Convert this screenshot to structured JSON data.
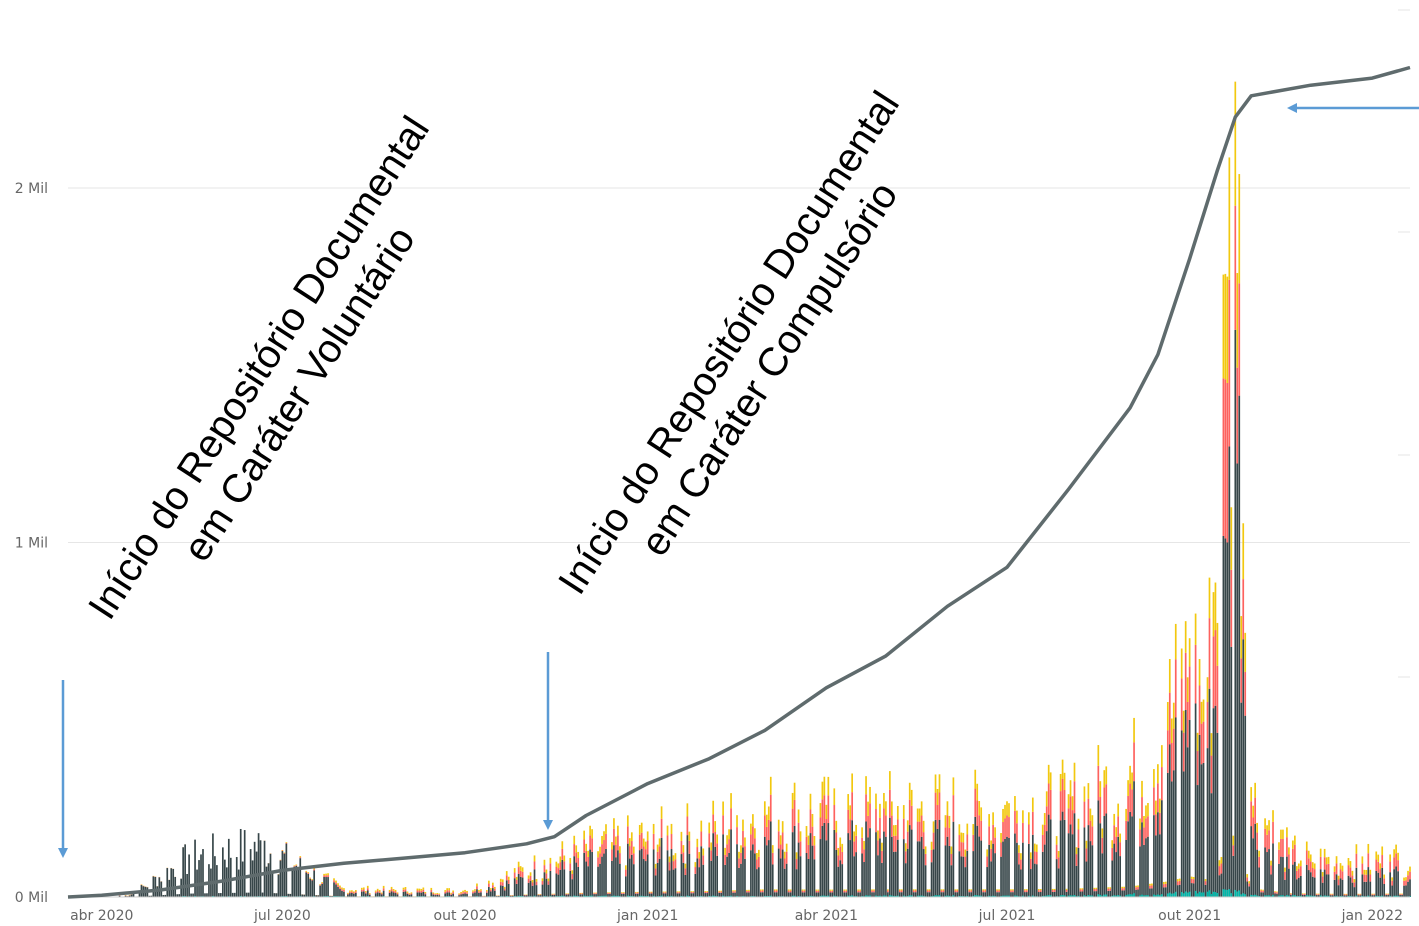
{
  "chart_data": {
    "type": "bar",
    "title": "",
    "xlabel": "",
    "ylabel": "",
    "ylim": [
      0,
      2000
    ],
    "y_unit": "thousands",
    "y_ticks": [
      {
        "value": 0,
        "label": "0 Mil"
      },
      {
        "value": 1000,
        "label": "1 Mil"
      },
      {
        "value": 2000,
        "label": "2 Mil"
      }
    ],
    "x_ticks": [
      {
        "date": "2020-04-01",
        "label": "abr 2020"
      },
      {
        "date": "2020-07-01",
        "label": "jul 2020"
      },
      {
        "date": "2020-10-01",
        "label": "out 2020"
      },
      {
        "date": "2021-01-01",
        "label": "jan 2021"
      },
      {
        "date": "2021-04-01",
        "label": "abr 2021"
      },
      {
        "date": "2021-07-01",
        "label": "jul 2021"
      },
      {
        "date": "2021-10-01",
        "label": "out 2021"
      },
      {
        "date": "2022-01-01",
        "label": "jan 2022"
      }
    ],
    "x_range": [
      "2020-03-15",
      "2022-01-20"
    ],
    "grid": true,
    "legend": "none",
    "stack_colors": [
      "#374649",
      "#FD625E",
      "#F2C80F",
      "#01B8AA"
    ],
    "line_color": "#5F6B6D",
    "bar_samples": [
      {
        "date": "2020-04-15",
        "stack": [
          4,
          1,
          1,
          0
        ]
      },
      {
        "date": "2020-05-15",
        "stack": [
          120,
          0,
          0,
          2
        ]
      },
      {
        "date": "2020-06-01",
        "stack": [
          140,
          0,
          0,
          2
        ]
      },
      {
        "date": "2020-06-20",
        "stack": [
          160,
          0,
          0,
          2
        ]
      },
      {
        "date": "2020-08-01",
        "stack": [
          15,
          5,
          5,
          2
        ]
      },
      {
        "date": "2020-10-01",
        "stack": [
          10,
          5,
          5,
          2
        ]
      },
      {
        "date": "2020-11-10",
        "stack": [
          70,
          20,
          15,
          3
        ]
      },
      {
        "date": "2020-12-01",
        "stack": [
          100,
          30,
          20,
          3
        ]
      },
      {
        "date": "2021-01-01",
        "stack": [
          120,
          40,
          25,
          3
        ]
      },
      {
        "date": "2021-02-01",
        "stack": [
          140,
          40,
          30,
          3
        ]
      },
      {
        "date": "2021-03-01",
        "stack": [
          170,
          60,
          40,
          3
        ]
      },
      {
        "date": "2021-04-01",
        "stack": [
          160,
          60,
          40,
          3
        ]
      },
      {
        "date": "2021-05-01",
        "stack": [
          170,
          60,
          40,
          4
        ]
      },
      {
        "date": "2021-06-01",
        "stack": [
          170,
          60,
          40,
          4
        ]
      },
      {
        "date": "2021-07-01",
        "stack": [
          170,
          60,
          40,
          4
        ]
      },
      {
        "date": "2021-08-01",
        "stack": [
          180,
          70,
          40,
          4
        ]
      },
      {
        "date": "2021-09-01",
        "stack": [
          240,
          80,
          50,
          8
        ]
      },
      {
        "date": "2021-09-20",
        "stack": [
          350,
          120,
          80,
          10
        ]
      },
      {
        "date": "2021-10-01",
        "stack": [
          500,
          150,
          80,
          15
        ]
      },
      {
        "date": "2021-10-10",
        "stack": [
          420,
          130,
          70,
          15
        ]
      },
      {
        "date": "2021-10-20",
        "stack": [
          1000,
          450,
          300,
          20
        ]
      },
      {
        "date": "2021-10-24",
        "stack": [
          1600,
          350,
          350,
          20
        ]
      },
      {
        "date": "2021-11-01",
        "stack": [
          200,
          70,
          40,
          6
        ]
      },
      {
        "date": "2021-11-20",
        "stack": [
          80,
          40,
          20,
          4
        ]
      },
      {
        "date": "2021-12-01",
        "stack": [
          70,
          30,
          20,
          4
        ]
      },
      {
        "date": "2021-12-20",
        "stack": [
          60,
          30,
          20,
          3
        ]
      },
      {
        "date": "2022-01-10",
        "stack": [
          70,
          30,
          20,
          3
        ]
      }
    ],
    "line_points": [
      {
        "date": "2020-03-15",
        "value": 0
      },
      {
        "date": "2020-04-01",
        "value": 5
      },
      {
        "date": "2020-05-01",
        "value": 20
      },
      {
        "date": "2020-06-01",
        "value": 45
      },
      {
        "date": "2020-07-01",
        "value": 75
      },
      {
        "date": "2020-08-01",
        "value": 95
      },
      {
        "date": "2020-09-01",
        "value": 110
      },
      {
        "date": "2020-10-01",
        "value": 125
      },
      {
        "date": "2020-11-01",
        "value": 150
      },
      {
        "date": "2020-11-15",
        "value": 170
      },
      {
        "date": "2020-12-01",
        "value": 230
      },
      {
        "date": "2021-01-01",
        "value": 320
      },
      {
        "date": "2021-02-01",
        "value": 390
      },
      {
        "date": "2021-03-01",
        "value": 470
      },
      {
        "date": "2021-04-01",
        "value": 590
      },
      {
        "date": "2021-05-01",
        "value": 680
      },
      {
        "date": "2021-06-01",
        "value": 820
      },
      {
        "date": "2021-07-01",
        "value": 930
      },
      {
        "date": "2021-08-01",
        "value": 1150
      },
      {
        "date": "2021-09-01",
        "value": 1380
      },
      {
        "date": "2021-09-15",
        "value": 1530
      },
      {
        "date": "2021-10-01",
        "value": 1800
      },
      {
        "date": "2021-10-15",
        "value": 2050
      },
      {
        "date": "2021-10-24",
        "value": 2200
      },
      {
        "date": "2021-11-01",
        "value": 2260
      },
      {
        "date": "2021-12-01",
        "value": 2290
      },
      {
        "date": "2022-01-01",
        "value": 2310
      },
      {
        "date": "2022-01-20",
        "value": 2340
      }
    ],
    "annotations": [
      {
        "lines": [
          "Início do Repositório Documental",
          "em Caráter Voluntário"
        ],
        "date": "2020-03-15"
      },
      {
        "lines": [
          "Início do Repositório Documental",
          "em Caráter Compulsório"
        ],
        "date": "2020-11-20"
      }
    ]
  }
}
